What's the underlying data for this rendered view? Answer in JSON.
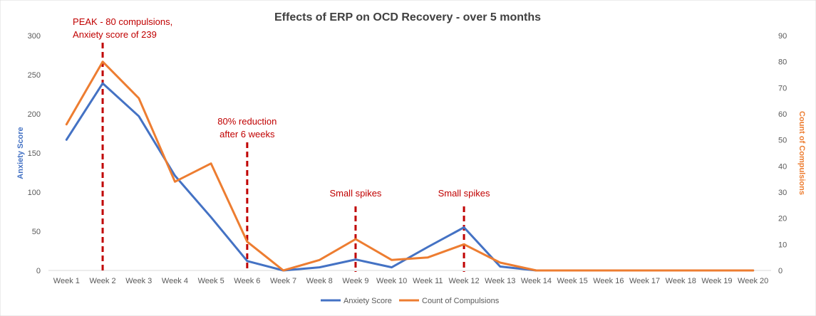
{
  "chart_data": {
    "type": "line",
    "title": "Effects of ERP on OCD Recovery  - over 5 months",
    "categories": [
      "Week 1",
      "Week 2",
      "Week 3",
      "Week 4",
      "Week 5",
      "Week 6",
      "Week 7",
      "Week 8",
      "Week 9",
      "Week 10",
      "Week 11",
      "Week 12",
      "Week 13",
      "Week 14",
      "Week 15",
      "Week 16",
      "Week 17",
      "Week 18",
      "Week 19",
      "Week 20"
    ],
    "series": [
      {
        "name": "Anxiety Score",
        "axis": "left",
        "color": "#4472C4",
        "values": [
          167,
          239,
          197,
          121,
          68,
          12,
          0,
          4,
          14,
          4,
          30,
          55,
          5,
          0,
          0,
          0,
          0,
          0,
          0,
          0
        ]
      },
      {
        "name": "Count of Compulsions",
        "axis": "right",
        "color": "#ED7D31",
        "values": [
          56,
          80,
          66,
          34,
          41,
          11,
          0,
          4,
          12,
          4,
          5,
          10,
          3,
          0,
          0,
          0,
          0,
          0,
          0,
          0
        ]
      }
    ],
    "y_left": {
      "label": "Anxiety Score",
      "min": 0,
      "max": 300,
      "ticks": [
        0,
        50,
        100,
        150,
        200,
        250,
        300
      ],
      "color": "#4472C4"
    },
    "y_right": {
      "label": "Count of Compulsions",
      "min": 0,
      "max": 90,
      "ticks": [
        0,
        10,
        20,
        30,
        40,
        50,
        60,
        70,
        80,
        90
      ],
      "color": "#ED7D31"
    },
    "grid": false,
    "legend_position": "bottom",
    "annotations": [
      {
        "week_index": 1,
        "lines": [
          "PEAK - 80 compulsions,",
          "Anxiety score of 239"
        ],
        "color": "#C00000"
      },
      {
        "week_index": 5,
        "lines": [
          "80% reduction",
          "after  6 weeks"
        ],
        "color": "#C00000"
      },
      {
        "week_index": 8,
        "lines": [
          "Small spikes"
        ],
        "color": "#C00000"
      },
      {
        "week_index": 11,
        "lines": [
          "Small spikes"
        ],
        "color": "#C00000"
      }
    ]
  }
}
